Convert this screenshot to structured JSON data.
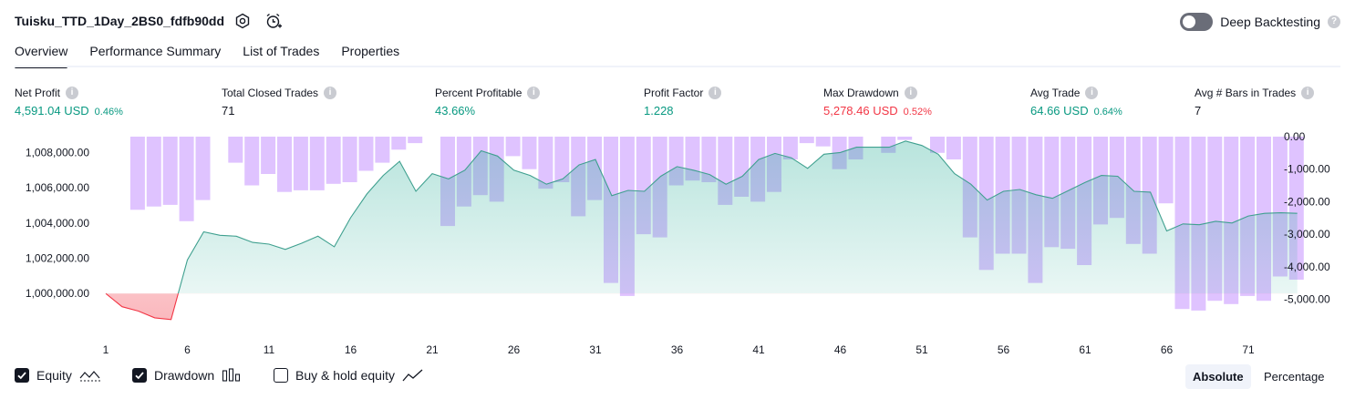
{
  "header": {
    "title": "Tuisku_TTD_1Day_2BS0_fdfb90dd",
    "deep_backtesting_label": "Deep Backtesting",
    "deep_backtesting_on": false
  },
  "tabs": [
    {
      "label": "Overview",
      "active": true
    },
    {
      "label": "Performance Summary",
      "active": false
    },
    {
      "label": "List of Trades",
      "active": false
    },
    {
      "label": "Properties",
      "active": false
    }
  ],
  "metrics": [
    {
      "label": "Net Profit",
      "value": "4,591.04 USD",
      "pct": "0.46%",
      "tone": "pos"
    },
    {
      "label": "Total Closed Trades",
      "value": "71",
      "pct": "",
      "tone": "neu"
    },
    {
      "label": "Percent Profitable",
      "value": "43.66%",
      "pct": "",
      "tone": "pos"
    },
    {
      "label": "Profit Factor",
      "value": "1.228",
      "pct": "",
      "tone": "pos"
    },
    {
      "label": "Max Drawdown",
      "value": "5,278.46 USD",
      "pct": "0.52%",
      "tone": "neg"
    },
    {
      "label": "Avg Trade",
      "value": "64.66 USD",
      "pct": "0.64%",
      "tone": "pos"
    },
    {
      "label": "Avg # Bars in Trades",
      "value": "7",
      "pct": "",
      "tone": "neu"
    }
  ],
  "legend": {
    "equity_label": "Equity",
    "equity_checked": true,
    "drawdown_label": "Drawdown",
    "drawdown_checked": true,
    "buyhold_label": "Buy & hold equity",
    "buyhold_checked": false
  },
  "mode": {
    "absolute_label": "Absolute",
    "percentage_label": "Percentage",
    "selected": "Absolute"
  },
  "colors": {
    "positive": "#089981",
    "negative": "#f23645",
    "equity_line": "#3fa08f",
    "drawdown_bar": "#d9b8ff",
    "text": "#131722"
  },
  "chart_data": {
    "type": "area",
    "x_ticks": [
      "1",
      "6",
      "11",
      "16",
      "21",
      "26",
      "31",
      "36",
      "41",
      "46",
      "51",
      "56",
      "61",
      "66",
      "71"
    ],
    "left_axis_ticks": [
      "1,000,000.00",
      "1,002,000.00",
      "1,004,000.00",
      "1,006,000.00",
      "1,008,000.00"
    ],
    "right_axis_ticks": [
      "0.00",
      "-1,000.00",
      "-2,000.00",
      "-3,000.00",
      "-4,000.00",
      "-5,000.00"
    ],
    "baseline": 1000000,
    "left_ylim": [
      998200,
      1008900
    ],
    "right_ylim": [
      -5800,
      0
    ],
    "series": [
      {
        "name": "Equity",
        "values": [
          1000000,
          999250,
          999000,
          998620,
          998520,
          1001900,
          1003500,
          1003300,
          1003250,
          1002900,
          1002800,
          1002500,
          1002850,
          1003250,
          1002650,
          1004300,
          1005650,
          1006700,
          1007500,
          1005800,
          1006800,
          1006500,
          1007000,
          1008100,
          1007800,
          1007000,
          1006700,
          1006200,
          1006500,
          1007300,
          1007600,
          1005550,
          1005850,
          1005800,
          1006650,
          1007200,
          1007000,
          1006750,
          1006200,
          1006650,
          1007600,
          1007950,
          1007700,
          1007100,
          1007900,
          1008000,
          1008300,
          1008300,
          1008300,
          1008650,
          1008400,
          1007900,
          1006800,
          1006200,
          1005300,
          1005800,
          1005900,
          1005600,
          1005400,
          1005850,
          1006300,
          1006700,
          1006650,
          1005800,
          1005750,
          1003550,
          1003950,
          1003900,
          1004100,
          1004000,
          1004400,
          1004550,
          1004580,
          1004550
        ]
      },
      {
        "name": "Drawdown",
        "values": [
          0,
          -2250,
          -2150,
          -2100,
          -2600,
          -1950,
          0,
          -800,
          -1500,
          -1150,
          -1700,
          -1650,
          -1650,
          -1450,
          -1400,
          -1050,
          -800,
          -400,
          -200,
          0,
          -2750,
          -2150,
          -1800,
          -2000,
          -600,
          -1000,
          -1600,
          -1400,
          -2450,
          -1950,
          -4500,
          -4900,
          -3000,
          -3100,
          -1500,
          -1350,
          -1400,
          -2100,
          -1850,
          -2000,
          -1700,
          -700,
          -200,
          -300,
          -1000,
          -700,
          0,
          -500,
          -100,
          0,
          -500,
          -700,
          -3100,
          -4100,
          -3600,
          -3600,
          -4500,
          -3400,
          -3450,
          -3950,
          -2700,
          -2500,
          -3300,
          -3600,
          -2050,
          -5300,
          -5350,
          -5050,
          -5150,
          -4900,
          -5050,
          -4300,
          -4400
        ]
      }
    ]
  }
}
